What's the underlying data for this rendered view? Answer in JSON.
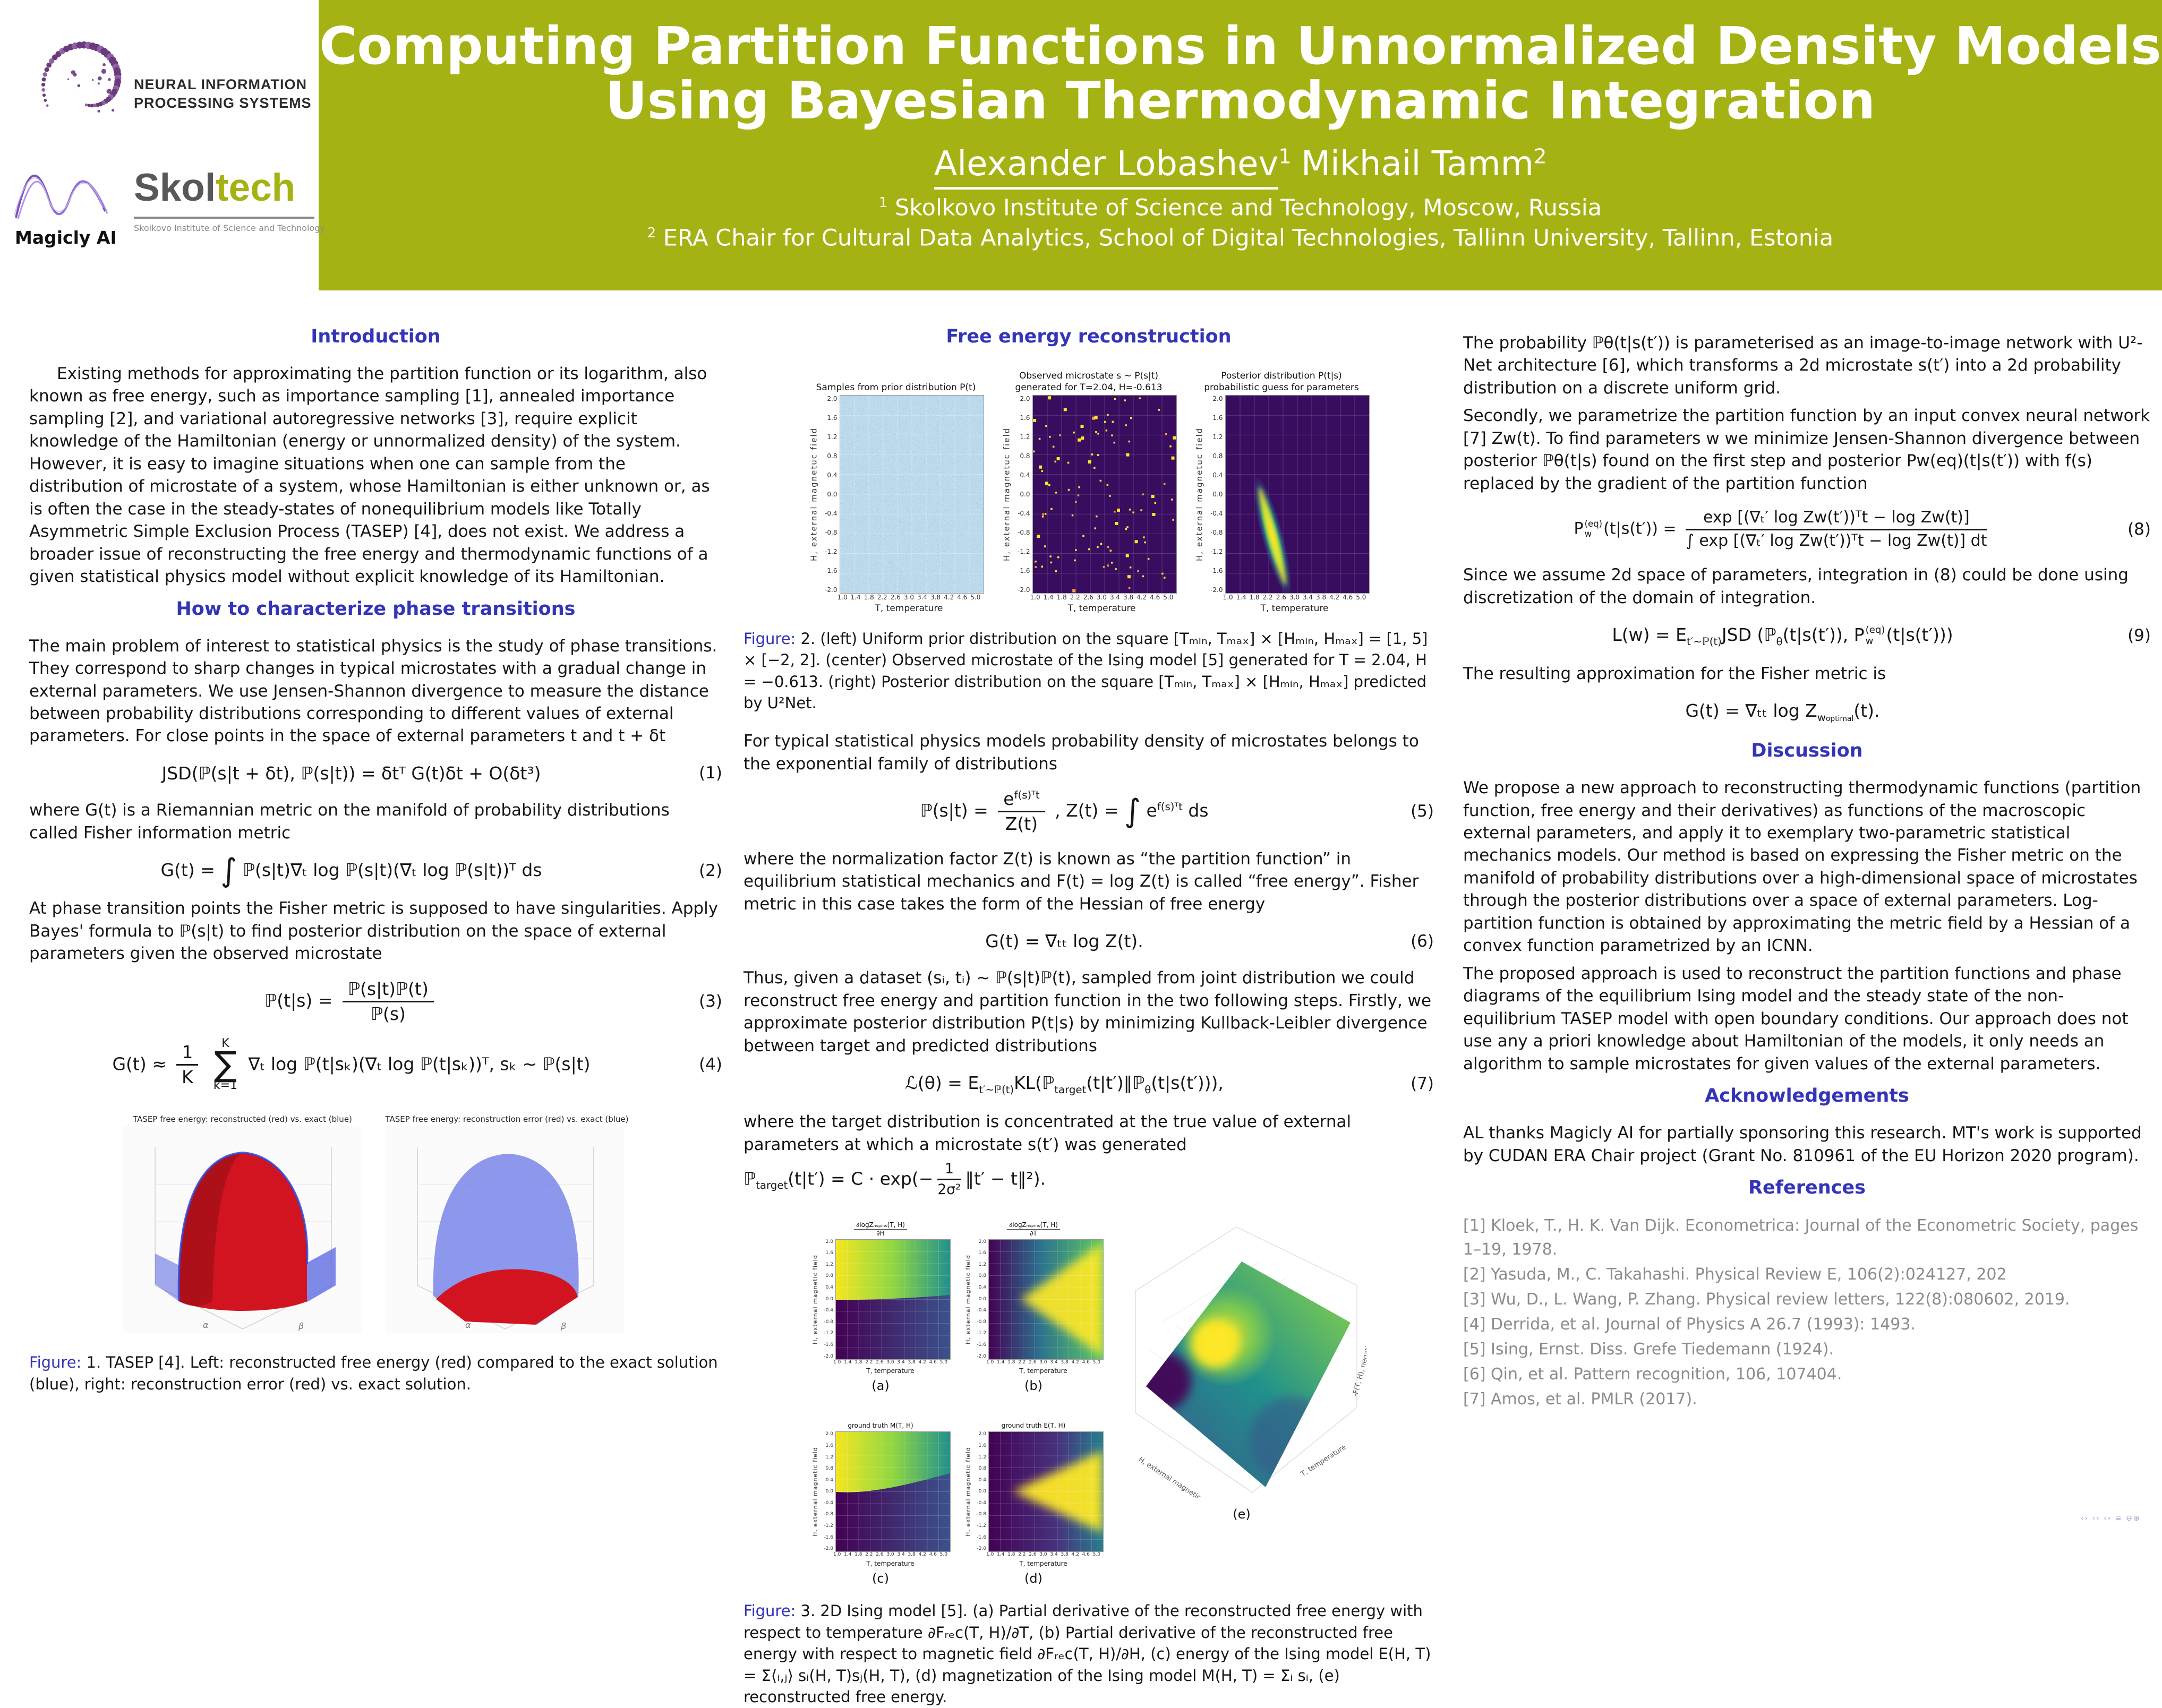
{
  "header": {
    "title_line1": "Computing Partition Functions in Unnormalized Density Models",
    "title_line2": "Using Bayesian Thermodynamic Integration",
    "author1": "Alexander Lobashev",
    "author1_sup": "1",
    "author2": "Mikhail Tamm",
    "author2_sup": "2",
    "affil1_sup": "1",
    "affil1": " Skolkovo Institute of Science and Technology, Moscow, Russia",
    "affil2_sup": "2",
    "affil2": " ERA Chair for Cultural Data Analytics, School of Digital Technologies, Tallinn University, Tallinn, Estonia",
    "logos": {
      "neurips_line1": "NEURAL INFORMATION",
      "neurips_line2": "PROCESSING SYSTEMS",
      "magicly": "Magicly AI",
      "skoltech_part1": "Skol",
      "skoltech_part2": "tech",
      "skoltech_sub": "Skolkovo Institute of Science and Technology"
    },
    "colors": {
      "header_green": "#a5b214",
      "heading_blue": "#3434b8"
    }
  },
  "col1": {
    "h1": "Introduction",
    "intro": "Existing methods for approximating the partition function or its logarithm, also known as free energy, such as importance sampling [1], annealed importance sampling [2], and variational autoregressive networks [3], require explicit knowledge of the Hamiltonian (energy or unnormalized density) of the system. However, it is easy to imagine situations when one can sample from the distribution of microstate of a system, whose Hamiltonian is either unknown or, as is often the case in the steady-states of nonequilibrium models like Totally Asymmetric Simple Exclusion Process (TASEP) [4], does not exist. We address a broader issue of reconstructing the free energy and thermodynamic functions of a given statistical physics model without explicit knowledge of its Hamiltonian.",
    "h2": "How to characterize phase transitions",
    "p2": "The main problem of interest to statistical physics is the study of phase transitions. They correspond to sharp changes in typical microstates with a gradual change in external parameters. We use Jensen-Shannon divergence to measure the distance between probability distributions corresponding to different values of external parameters. For close points in the space of external parameters t and t + δt",
    "eq1": {
      "body": "JSD(ℙ(s|t + δt), ℙ(s|t)) = δtᵀ G(t)δt + O(δt³)",
      "num": "(1)"
    },
    "p3": "where G(t) is a Riemannian metric on the manifold of probability distributions called Fisher information metric",
    "eq2": {
      "pre": "G(t) = ",
      "int": "∫",
      "post": " ℙ(s|t)∇ₜ log ℙ(s|t)(∇ₜ log ℙ(s|t))ᵀ ds",
      "num": "(2)"
    },
    "p4": "At phase transition points the Fisher metric is supposed to have singularities. Apply Bayes' formula to ℙ(s|t) to find posterior distribution on the space of external parameters given the observed microstate",
    "eq3": {
      "lhs": "ℙ(t|s) = ",
      "fn": "ℙ(s|t)ℙ(t)",
      "fd": "ℙ(s)",
      "num": "(3)"
    },
    "eq4": {
      "lhs": "G(t) ≈ ",
      "f1n": "1",
      "f1d": "K",
      "sum_top": "K",
      "sum_sym": "∑",
      "sum_bot": "k=1",
      "body": "∇ₜ log ℙ(t|sₖ)(∇ₜ log ℙ(t|sₖ))ᵀ,   sₖ ∼ ℙ(s|t)",
      "num": "(4)"
    },
    "fig1": {
      "title_left": "TASEP free energy: reconstructed (red) vs. exact (blue)",
      "title_right": "TASEP free energy: reconstruction error (red) vs. exact (blue)",
      "axis_alpha": "α",
      "axis_beta": "β",
      "caption_label": "Figure:",
      "caption": " 1. TASEP [4]. Left: reconstructed free energy (red) compared to the exact solution (blue), right: reconstruction error (red) vs. exact solution."
    }
  },
  "col2": {
    "h1": "Free energy reconstruction",
    "fig2": {
      "panel1_title": "Samples from prior distribution P(t)",
      "panel2_title_l1": "Observed microstate s ∼ P(s|t)",
      "panel2_title_l2": "generated for T=2.04, H=-0.613",
      "panel3_title_l1": "Posterior distribution P(t|s)",
      "panel3_title_l2": "probabilistic guess for parameters",
      "ylabel": "H, external magnetuc field",
      "xlabel": "T, temperature",
      "y_ticks": [
        "2.0",
        "1.6",
        "1.2",
        "0.8",
        "0.4",
        "0.0",
        "-0.4",
        "-0.8",
        "-1.2",
        "-1.6",
        "-2.0"
      ],
      "x_ticks": [
        "1.0",
        "1.4",
        "1.8",
        "2.2",
        "2.6",
        "3.0",
        "3.4",
        "3.8",
        "4.2",
        "4.6",
        "5.0"
      ],
      "caption_label": "Figure:",
      "caption": " 2. (left) Uniform prior distribution on the square [Tₘᵢₙ, Tₘₐₓ] × [Hₘᵢₙ, Hₘₐₓ] = [1, 5] × [−2, 2]. (center) Observed microstate of the Ising model [5] generated for T = 2.04, H = −0.613. (right) Posterior distribution on the square [Tₘᵢₙ, Tₘₐₓ] × [Hₘᵢₙ, Hₘₐₓ] predicted by U²Net."
    },
    "p1": "For typical statistical physics models probability density of microstates belongs to the exponential family of distributions",
    "eq5": {
      "lhs": "ℙ(s|t) = ",
      "nb": "e",
      "ns": "f(s)ᵀt",
      "fd": "Z(t)",
      "mid": ",    Z(t) = ",
      "int": "∫",
      "ib": "e",
      "isup": "f(s)ᵀt",
      "tail": " ds",
      "num": "(5)"
    },
    "p2": "where the normalization factor Z(t) is known as “the partition function” in equilibrium statistical mechanics and F(t) = log Z(t) is called “free energy”. Fisher metric in this case takes the form of the Hessian of free energy",
    "eq6": {
      "body": "G(t) = ∇ₜₜ log Z(t).",
      "num": "(6)"
    },
    "p3": "Thus, given a dataset (sᵢ, tᵢ) ∼ ℙ(s|t)ℙ(t), sampled from joint distribution we could reconstruct free energy and partition function in the two following steps. Firstly, we approximate posterior distribution P(t|s) by minimizing Kullback-Leibler divergence between target and predicted distributions",
    "eq7": {
      "b1": "ℒ(θ) = E",
      "s1": "t′∼ℙ(t)",
      "b2": "KL(ℙ",
      "s2": "target",
      "b3": "(t|t′)‖ℙ",
      "s3": "θ",
      "b4": "(t|s(t′))),",
      "num": "(7)"
    },
    "p4": "where the target distribution is concentrated at the true value of external parameters at which a microstate s(t′) was generated",
    "ptarget": {
      "b1": "ℙ",
      "s1": "target",
      "b2": "(t|t′) = C · exp(−",
      "fn": "1",
      "fd": "2σ²",
      "b3": "‖t′ − t‖²)."
    },
    "fig3": {
      "a_num": "∂logZₙₛₚᵢₙₛ(T, H)",
      "a_den": "∂H",
      "b_num": "∂logZₙₛₚᵢₙₛ(T, H)",
      "b_den": "∂T",
      "c_title": "ground truth M(T, H)",
      "d_title": "ground truth E(T, H)",
      "ylabel": "H, external magnetic field",
      "xlabel": "T, temperature",
      "e_ylabel": "H, external magnetic field",
      "e_xlabel": "T, temperature",
      "e_zlabel": "-F(T, H), negative free energy",
      "labels": [
        "(a)",
        "(b)",
        "(c)",
        "(d)",
        "(e)"
      ],
      "y_ticks": [
        "2.0",
        "1.6",
        "1.2",
        "0.8",
        "0.4",
        "0.0",
        "-0.4",
        "-0.8",
        "-1.2",
        "-1.6",
        "-2.0"
      ],
      "x_ticks": [
        "1.0",
        "1.4",
        "1.8",
        "2.2",
        "2.6",
        "3.0",
        "3.4",
        "3.8",
        "4.2",
        "4.6",
        "5.0"
      ],
      "caption_label": "Figure:",
      "caption": " 3. 2D Ising model [5]. (a) Partial derivative of the reconstructed free energy with respect to temperature ∂Fᵣₑc(T, H)/∂T, (b) Partial derivative of the reconstructed free energy with respect to magnetic field ∂Fᵣₑc(T, H)/∂H, (c) energy of the Ising model E(H, T) = Σ⟨ᵢ,ⱼ⟩ sᵢ(H, T)sⱼ(H, T), (d) magnetization of the Ising model M(H, T) = Σᵢ sᵢ, (e) reconstructed free energy."
    }
  },
  "col3": {
    "p1": "The probability ℙθ(t|s(t′)) is parameterised as an image-to-image network with U²-Net architecture [6], which transforms a 2d microstate s(t′) into a 2d probability distribution on a discrete uniform grid.",
    "p2": "Secondly, we parametrize the partition function by an input convex neural network [7] Zw(t). To find parameters w we minimize Jensen-Shannon divergence between posterior ℙθ(t|s) found on the first step and posterior Pw(eq)(t|s(t′)) with f(s) replaced by the gradient of the partition function",
    "eq8": {
      "p": "P",
      "sup": "(eq)",
      "sub": "w",
      "rest": "(t|s(t′)) = ",
      "fn": "exp [(∇ₜ′ log Zw(t′))ᵀt − log Zw(t)]",
      "fd": "∫ exp [(∇ₜ′ log Zw(t′))ᵀt − log Zw(t)] dt",
      "num": "(8)"
    },
    "p3": "Since we assume 2d space of parameters, integration in (8) could be done using discretization of the domain of integration.",
    "eq9": {
      "b1": "L(w) = E",
      "s1": "t′∼ℙ(t)",
      "b2": "JSD (ℙ",
      "s2": "θ",
      "b3": "(t|s(t′)), P",
      "sup": "(eq)",
      "sub": "w",
      "b4": "(t|s(t′)))",
      "num": "(9)"
    },
    "p4": "The resulting approximation for the Fisher metric is",
    "fisher": {
      "b1": "G(t) = ∇ₜₜ log Z",
      "sub_main": "w",
      "sub_sub": "optimal",
      "tail": "(t)."
    },
    "h_disc": "Discussion",
    "disc1": "We propose a new approach to reconstructing thermodynamic functions (partition function, free energy and their derivatives) as functions of the macroscopic external parameters, and apply it to exemplary two-parametric statistical mechanics models. Our method is based on expressing the Fisher metric on the manifold of probability distributions over a high-dimensional space of microstates through the posterior distributions over a space of external parameters. Log-partition function is obtained by approximating the metric field by a Hessian of a convex function parametrized by an ICNN.",
    "disc2": "The proposed approach is used to reconstruct the partition functions and phase diagrams of the equilibrium Ising model and the steady state of the non-equilibrium TASEP model with open boundary conditions. Our approach does not use any a priori knowledge about Hamiltonian of the models, it only needs an algorithm to sample microstates for given values of the external parameters.",
    "h_ack": "Acknowledgements",
    "ack": "AL thanks Magicly AI for partially sponsoring this research. MT's work is supported by CUDAN ERA Chair project (Grant No. 810961 of the EU Horizon 2020 program).",
    "h_refs": "References",
    "refs": [
      "[1] Kloek, T., H. K. Van Dijk. Econometrica: Journal of the Econometric Society, pages 1–19, 1978.",
      "[2] Yasuda, M., C. Takahashi. Physical Review E, 106(2):024127, 202",
      "[3] Wu, D., L. Wang, P. Zhang. Physical review letters, 122(8):080602, 2019.",
      "[4] Derrida, et al. Journal of Physics A 26.7 (1993): 1493.",
      "[5] Ising, Ernst. Diss. Grefe  Tiedemann (1924).",
      "[6] Qin, et al. Pattern recognition, 106, 107404.",
      "[7] Amos, et al. PMLR (2017)."
    ]
  },
  "footer": {
    "marks": "‹› ‹› ‹›  ≡  ⊖⊕"
  },
  "chart_data": [
    {
      "id": "figure1-left",
      "type": "surface",
      "title": "TASEP free energy: reconstructed (red) vs. exact (blue)",
      "series": [
        "reconstructed free energy (red)",
        "exact solution (blue)"
      ],
      "xlabel": "α",
      "ylabel": "β",
      "x_range": [
        0,
        1
      ],
      "y_range": [
        0,
        1
      ],
      "description": "red dome-shaped reconstructed surface nearly coinciding with blue exact surface"
    },
    {
      "id": "figure1-right",
      "type": "surface",
      "title": "TASEP free energy: reconstruction error (red) vs. exact (blue)",
      "series": [
        "reconstruction error (red)",
        "exact solution (blue)"
      ],
      "xlabel": "α",
      "ylabel": "β",
      "x_range": [
        0,
        1
      ],
      "y_range": [
        0,
        1
      ],
      "description": "translucent blue exact surface above, low red error surface below"
    },
    {
      "id": "figure2-left",
      "type": "heatmap",
      "title": "Samples from prior distribution P(t)",
      "xlabel": "T, temperature",
      "ylabel": "H, external magnetuc field",
      "x_range": [
        1,
        5
      ],
      "y_range": [
        -2,
        2
      ],
      "x_ticks": [
        1.0,
        1.4,
        1.8,
        2.2,
        2.6,
        3.0,
        3.4,
        3.8,
        4.2,
        4.6,
        5.0
      ],
      "y_ticks": [
        2.0,
        1.6,
        1.2,
        0.8,
        0.4,
        0.0,
        -0.4,
        -0.8,
        -1.2,
        -1.6,
        -2.0
      ],
      "description": "uniform light-blue noise over the whole square"
    },
    {
      "id": "figure2-center",
      "type": "heatmap",
      "title": "Observed microstate s ∼ P(s|t) generated for T=2.04, H=-0.613",
      "xlabel": "T, temperature",
      "ylabel": "H, external magnetuc field",
      "x_range": [
        1,
        5
      ],
      "y_range": [
        -2,
        2
      ],
      "generated_at": {
        "T": 2.04,
        "H": -0.613
      },
      "description": "dark purple field with sparse yellow pixels"
    },
    {
      "id": "figure2-right",
      "type": "heatmap",
      "title": "Posterior distribution P(t|s) probabilistic guess for parameters",
      "xlabel": "T, temperature",
      "ylabel": "H, external magnetuc field",
      "x_range": [
        1,
        5
      ],
      "y_range": [
        -2,
        2
      ],
      "ridge": {
        "from": {
          "T": 1.9,
          "H": 0.1
        },
        "to": {
          "T": 2.7,
          "H": -1.9
        }
      },
      "description": "dark purple field with bright diagonal yellow-green posterior ridge"
    },
    {
      "id": "figure3-a",
      "type": "heatmap",
      "title": "∂logZ(T,H)/∂H",
      "xlabel": "T, temperature",
      "ylabel": "H, external magnetic field",
      "x_range": [
        1,
        5
      ],
      "y_range": [
        -2,
        2
      ],
      "description": "yellow-to-teal upper half (H>0), dark purple-to-blue lower half (H<0)"
    },
    {
      "id": "figure3-b",
      "type": "heatmap",
      "title": "∂logZ(T,H)/∂T",
      "xlabel": "T, temperature",
      "ylabel": "H, external magnetic field",
      "x_range": [
        1,
        5
      ],
      "y_range": [
        -2,
        2
      ],
      "description": "dark left edge, bright yellow wedge opening toward high T around H=0"
    },
    {
      "id": "figure3-c",
      "type": "heatmap",
      "title": "ground truth M(T, H)",
      "xlabel": "T, temperature",
      "ylabel": "H, external magnetic field",
      "x_range": [
        1,
        5
      ],
      "y_range": [
        -2,
        2
      ],
      "description": "magnetization: yellow for H>0 fading to teal at high T, dark for H<0"
    },
    {
      "id": "figure3-d",
      "type": "heatmap",
      "title": "ground truth E(T, H)",
      "xlabel": "T, temperature",
      "ylabel": "H, external magnetic field",
      "x_range": [
        1,
        5
      ],
      "y_range": [
        -2,
        2
      ],
      "description": "energy: dark at low T, bright yellow wedge near H=0 at high T"
    },
    {
      "id": "figure3-e",
      "type": "surface",
      "title": "reconstructed free energy",
      "xlabel": "T, temperature",
      "ylabel": "H, external magnetic field",
      "zlabel": "-F(T, H), negative free energy",
      "x_range": [
        1,
        5
      ],
      "y_range": [
        -2,
        2
      ],
      "colormap": "viridis",
      "description": "smooth viridis-colored surface with bright yellow ridge"
    }
  ]
}
